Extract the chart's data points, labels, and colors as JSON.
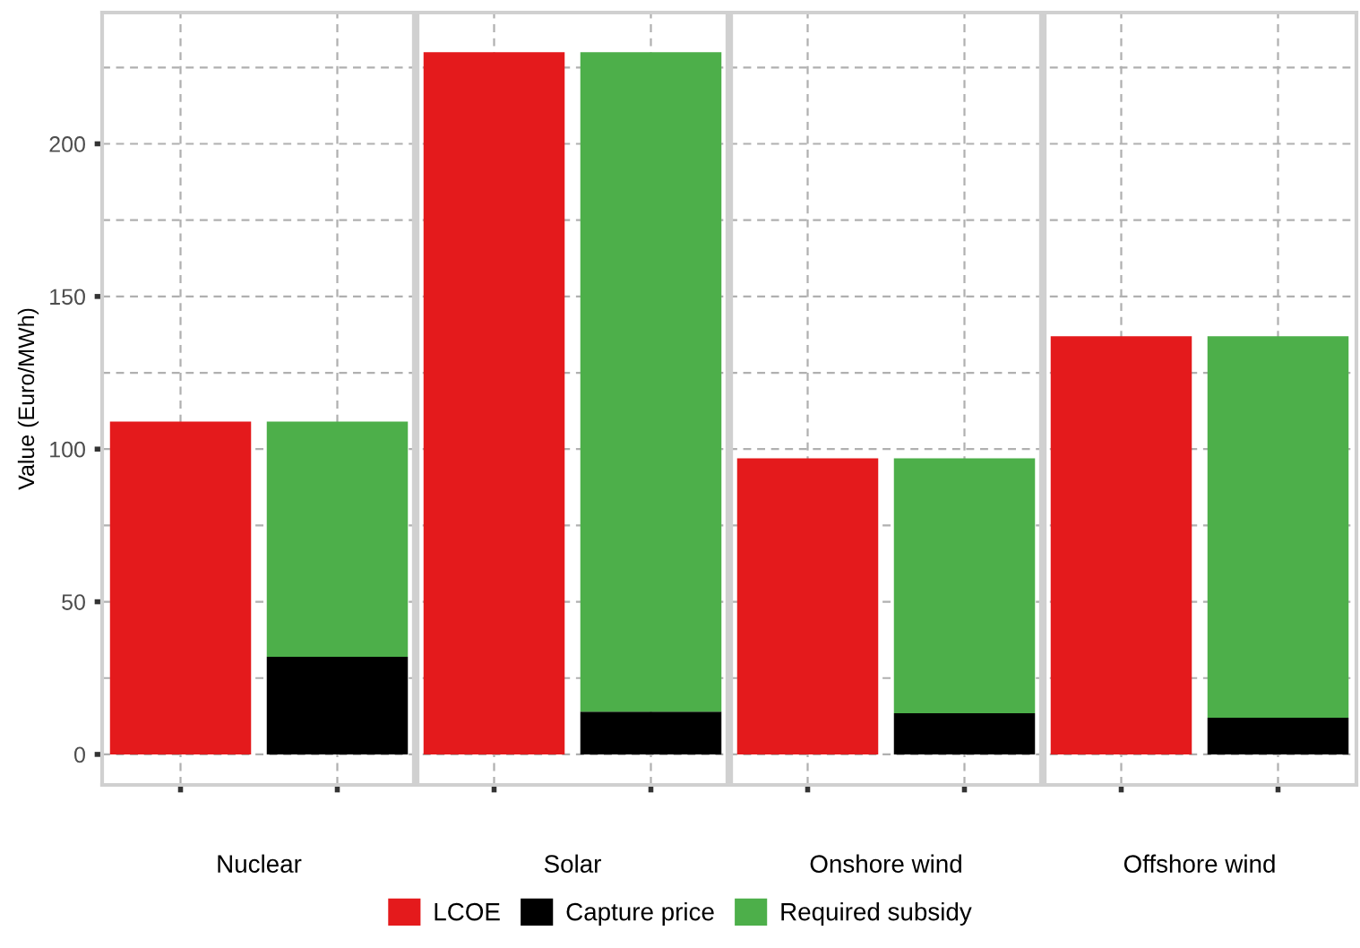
{
  "chart_data": {
    "type": "bar",
    "stacked": true,
    "ylabel": "Value (Euro/MWh)",
    "categories": [
      null,
      null,
      null,
      null,
      null,
      null,
      null,
      null
    ],
    "annotations": [
      "Nuclear",
      "Solar",
      "Onshore wind",
      "Offshore wind"
    ],
    "ylim": [
      -10,
      243
    ],
    "yticks": [
      0,
      {
        "value": 25,
        "label": null
      },
      50,
      {
        "value": 75,
        "label": null
      },
      100,
      {
        "value": 125,
        "label": null
      },
      150,
      {
        "value": 175,
        "label": null
      },
      200,
      {
        "value": 225,
        "label": null
      }
    ],
    "grid": true,
    "legend": "bottom",
    "series": [
      {
        "name": "LCOE",
        "color": "#e41a1c",
        "values": [
          109,
          null,
          230,
          null,
          97,
          null,
          137,
          null
        ]
      },
      {
        "name": "Capture price",
        "color": "#000000",
        "values": [
          null,
          32,
          null,
          14,
          null,
          13.5,
          null,
          12
        ]
      },
      {
        "name": "Required subsidy",
        "color": "#4daf4a",
        "values": [
          null,
          77,
          null,
          216,
          null,
          83.5,
          null,
          125
        ]
      }
    ]
  }
}
